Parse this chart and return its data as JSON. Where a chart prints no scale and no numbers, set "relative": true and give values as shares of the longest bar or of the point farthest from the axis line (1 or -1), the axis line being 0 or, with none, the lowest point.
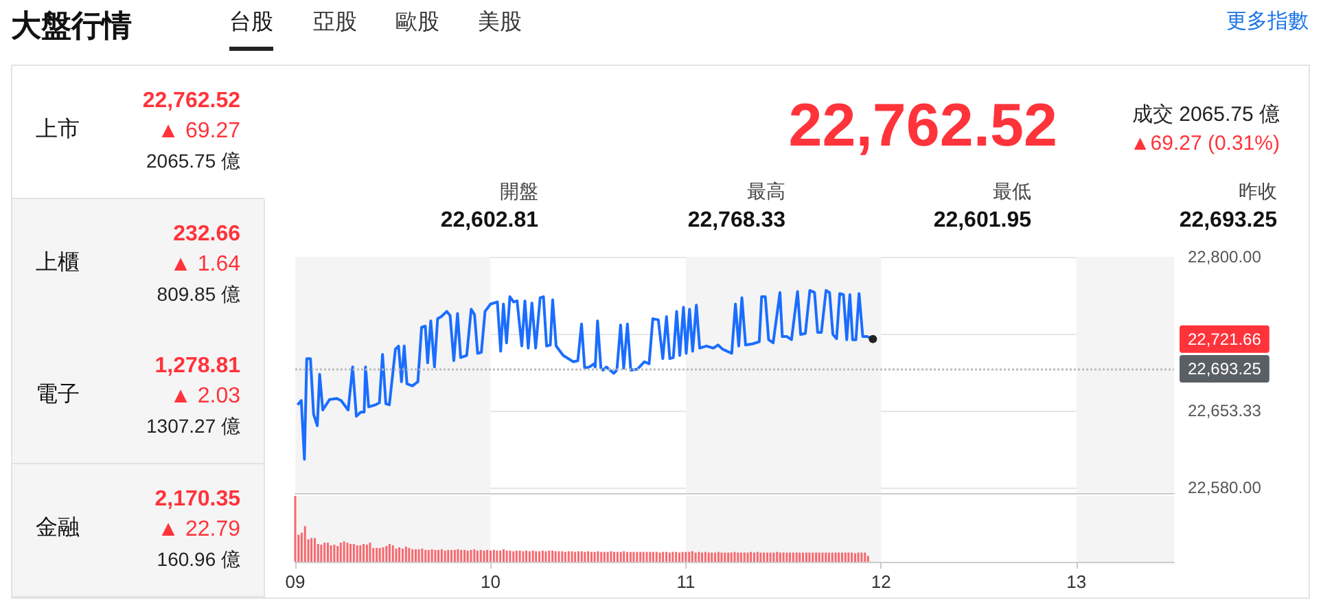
{
  "chart_data": [
    {
      "type": "line",
      "title": "大盤行情",
      "annotations": [
        "台股",
        "亞股",
        "歐股",
        "美股",
        "更多指數",
        "上市",
        "22,762.52",
        "▲ 69.27",
        "2065.75 億",
        "上櫃",
        "232.66",
        "▲ 1.64",
        "809.85 億",
        "電子",
        "1,278.81",
        "▲ 2.03",
        "1307.27 億",
        "金融",
        "2,170.35",
        "▲ 22.79",
        "160.96 億",
        "22,762.52",
        "成交 2065.75 億",
        "▲69.27 (0.31%)",
        "開盤",
        "22,602.81",
        "最高",
        "22,768.33",
        "最低",
        "22,601.95",
        "昨收",
        "22,693.25",
        "22,721.66"
      ],
      "color": "#1a6dff",
      "x": [
        9.012,
        9.031,
        9.047,
        9.059,
        9.078,
        9.094,
        9.113,
        9.125,
        9.141,
        9.176,
        9.212,
        9.235,
        9.271,
        9.294,
        9.313,
        9.336,
        9.353,
        9.36,
        9.376,
        9.412,
        9.431,
        9.447,
        9.464,
        9.482,
        9.513,
        9.529,
        9.544,
        9.558,
        9.572,
        9.6,
        9.628,
        9.647,
        9.666,
        9.678,
        9.694,
        9.713,
        9.729,
        9.748,
        9.776,
        9.793,
        9.812,
        9.831,
        9.847,
        9.878,
        9.901,
        9.918,
        9.934,
        9.953,
        9.972,
        10.0,
        10.035,
        10.052,
        10.066,
        10.082,
        10.099,
        10.118,
        10.136,
        10.16,
        10.176,
        10.193,
        10.212,
        10.231,
        10.254,
        10.271,
        10.287,
        10.306,
        10.318,
        10.336,
        10.372,
        10.424,
        10.447,
        10.466,
        10.482,
        10.506,
        10.529,
        10.536,
        10.548,
        10.565,
        10.576,
        10.593,
        10.612,
        10.631,
        10.647,
        10.666,
        10.682,
        10.701,
        10.718,
        10.753,
        10.788,
        10.812,
        10.831,
        10.859,
        10.882,
        10.901,
        10.918,
        10.936,
        10.953,
        10.969,
        10.988,
        11.002,
        11.019,
        11.035,
        11.054,
        11.071,
        11.106,
        11.141,
        11.165,
        11.188,
        11.235,
        11.254,
        11.271,
        11.287,
        11.306,
        11.341,
        11.376,
        11.388,
        11.407,
        11.424,
        11.447,
        11.482,
        11.494,
        11.518,
        11.541,
        11.572,
        11.588,
        11.612,
        11.635,
        11.659,
        11.675,
        11.694,
        11.718,
        11.736,
        11.753,
        11.772,
        11.788,
        11.807,
        11.824,
        11.84,
        11.854,
        11.871,
        11.887,
        11.906,
        11.929,
        11.958
      ],
      "values": [
        22659,
        22663,
        22607,
        22703,
        22703,
        22650,
        22639,
        22688,
        22654,
        22664,
        22665,
        22663,
        22654,
        22695,
        22648,
        22652,
        22652,
        22695,
        22657,
        22659,
        22661,
        22707,
        22660,
        22659,
        22712,
        22715,
        22681,
        22715,
        22679,
        22677,
        22681,
        22733,
        22734,
        22699,
        22739,
        22695,
        22741,
        22743,
        22748,
        22744,
        22701,
        22746,
        22704,
        22706,
        22750,
        22745,
        22708,
        22709,
        22748,
        22755,
        22757,
        22710,
        22755,
        22718,
        22762,
        22757,
        22758,
        22715,
        22758,
        22713,
        22756,
        22713,
        22761,
        22762,
        22715,
        22716,
        22759,
        22715,
        22706,
        22700,
        22701,
        22736,
        22694,
        22695,
        22698,
        22695,
        22739,
        22694,
        22692,
        22695,
        22692,
        22689,
        22692,
        22735,
        22694,
        22736,
        22692,
        22693,
        22700,
        22698,
        22741,
        22740,
        22703,
        22743,
        22703,
        22704,
        22748,
        22706,
        22752,
        22708,
        22750,
        22710,
        22754,
        22713,
        22715,
        22713,
        22716,
        22712,
        22708,
        22755,
        22715,
        22761,
        22716,
        22717,
        22719,
        22762,
        22762,
        22721,
        22718,
        22766,
        22724,
        22724,
        22721,
        22767,
        22726,
        22727,
        22768,
        22766,
        22728,
        22728,
        22768,
        22766,
        22726,
        22722,
        22765,
        22764,
        22721,
        22764,
        22721,
        22721,
        22765,
        22724,
        22724,
        22721.66
      ],
      "xlim": [
        9,
        13.5
      ],
      "ylim": [
        22575,
        22800
      ],
      "yticks": [
        {
          "value": 22580,
          "label": "22,580.00"
        },
        {
          "value": 22653.33,
          "label": "22,653.33"
        },
        {
          "value": 22726.67,
          "label": null
        },
        {
          "value": 22800,
          "label": "22,800.00"
        }
      ],
      "tick_labels": "y",
      "grid": "y",
      "marker": "none",
      "ref_lines": [
        {
          "axis": "y",
          "value": 22693.25,
          "label": "22,693.25",
          "color": "#bbbbbb",
          "line_style": "dotted"
        }
      ],
      "bands": [
        {
          "axis": "x",
          "from": 9,
          "to": 10,
          "color": "#f4f4f4"
        },
        {
          "axis": "x",
          "from": 11,
          "to": 12,
          "color": "#f4f4f4"
        },
        {
          "axis": "x",
          "from": 13,
          "to": 13.5,
          "color": "#f4f4f4"
        }
      ]
    },
    {
      "type": "bar",
      "relative": true,
      "tick_labels": "x",
      "color": "#f7686e",
      "xlim": [
        9,
        13.5
      ],
      "xticks": [
        {
          "value": 9,
          "label": "09"
        },
        {
          "value": 10,
          "label": "10"
        },
        {
          "value": 11,
          "label": "11"
        },
        {
          "value": 12,
          "label": "12"
        },
        {
          "value": 13,
          "label": "13"
        }
      ],
      "bands": [
        {
          "axis": "x",
          "from": 9,
          "to": 10,
          "color": "#f4f4f4"
        },
        {
          "axis": "x",
          "from": 11,
          "to": 12,
          "color": "#f4f4f4"
        },
        {
          "axis": "x",
          "from": 13,
          "to": 13.5,
          "color": "#f4f4f4"
        }
      ],
      "x": [
        9,
        9.017,
        9.033,
        9.05,
        9.067,
        9.083,
        9.1,
        9.117,
        9.133,
        9.15,
        9.167,
        9.183,
        9.2,
        9.217,
        9.233,
        9.25,
        9.267,
        9.283,
        9.3,
        9.317,
        9.333,
        9.35,
        9.367,
        9.383,
        9.4,
        9.417,
        9.433,
        9.45,
        9.467,
        9.483,
        9.5,
        9.517,
        9.533,
        9.55,
        9.567,
        9.583,
        9.6,
        9.617,
        9.633,
        9.65,
        9.667,
        9.683,
        9.7,
        9.717,
        9.733,
        9.75,
        9.767,
        9.783,
        9.8,
        9.817,
        9.833,
        9.85,
        9.867,
        9.883,
        9.9,
        9.917,
        9.933,
        9.95,
        9.967,
        9.983,
        10,
        10.017,
        10.033,
        10.05,
        10.067,
        10.083,
        10.1,
        10.117,
        10.133,
        10.15,
        10.167,
        10.183,
        10.2,
        10.217,
        10.233,
        10.25,
        10.267,
        10.283,
        10.3,
        10.317,
        10.333,
        10.35,
        10.367,
        10.383,
        10.4,
        10.417,
        10.433,
        10.45,
        10.467,
        10.483,
        10.5,
        10.517,
        10.533,
        10.55,
        10.567,
        10.583,
        10.6,
        10.617,
        10.633,
        10.65,
        10.667,
        10.683,
        10.7,
        10.717,
        10.733,
        10.75,
        10.767,
        10.783,
        10.8,
        10.817,
        10.833,
        10.85,
        10.867,
        10.883,
        10.9,
        10.917,
        10.933,
        10.95,
        10.967,
        10.983,
        11,
        11.017,
        11.033,
        11.05,
        11.067,
        11.083,
        11.1,
        11.117,
        11.133,
        11.15,
        11.167,
        11.183,
        11.2,
        11.217,
        11.233,
        11.25,
        11.267,
        11.283,
        11.3,
        11.317,
        11.333,
        11.35,
        11.367,
        11.383,
        11.4,
        11.417,
        11.433,
        11.45,
        11.467,
        11.483,
        11.5,
        11.517,
        11.533,
        11.55,
        11.567,
        11.583,
        11.6,
        11.617,
        11.633,
        11.65,
        11.667,
        11.683,
        11.7,
        11.717,
        11.733,
        11.75,
        11.767,
        11.783,
        11.8,
        11.817,
        11.833,
        11.85,
        11.867,
        11.883,
        11.9,
        11.917,
        11.933
      ],
      "values": [
        1,
        0.41,
        0.44,
        0.54,
        0.34,
        0.36,
        0.36,
        0.27,
        0.26,
        0.29,
        0.29,
        0.25,
        0.26,
        0.24,
        0.29,
        0.31,
        0.29,
        0.27,
        0.27,
        0.25,
        0.25,
        0.27,
        0.26,
        0.29,
        0.21,
        0.21,
        0.21,
        0.22,
        0.24,
        0.27,
        0.25,
        0.2,
        0.22,
        0.2,
        0.23,
        0.21,
        0.19,
        0.19,
        0.19,
        0.2,
        0.18,
        0.18,
        0.19,
        0.18,
        0.18,
        0.19,
        0.17,
        0.18,
        0.18,
        0.18,
        0.19,
        0.18,
        0.18,
        0.17,
        0.18,
        0.19,
        0.17,
        0.18,
        0.17,
        0.18,
        0.17,
        0.18,
        0.17,
        0.17,
        0.19,
        0.17,
        0.17,
        0.16,
        0.17,
        0.17,
        0.16,
        0.17,
        0.16,
        0.17,
        0.16,
        0.16,
        0.17,
        0.16,
        0.17,
        0.17,
        0.16,
        0.16,
        0.16,
        0.15,
        0.16,
        0.16,
        0.15,
        0.16,
        0.16,
        0.15,
        0.16,
        0.15,
        0.15,
        0.16,
        0.15,
        0.15,
        0.15,
        0.16,
        0.15,
        0.15,
        0.15,
        0.16,
        0.15,
        0.15,
        0.15,
        0.15,
        0.15,
        0.15,
        0.15,
        0.15,
        0.15,
        0.15,
        0.14,
        0.15,
        0.15,
        0.14,
        0.15,
        0.15,
        0.14,
        0.15,
        0.15,
        0.15,
        0.16,
        0.14,
        0.15,
        0.14,
        0.15,
        0.14,
        0.14,
        0.14,
        0.15,
        0.14,
        0.14,
        0.14,
        0.14,
        0.15,
        0.14,
        0.14,
        0.14,
        0.14,
        0.15,
        0.14,
        0.15,
        0.14,
        0.14,
        0.14,
        0.14,
        0.14,
        0.15,
        0.14,
        0.14,
        0.14,
        0.14,
        0.14,
        0.14,
        0.14,
        0.14,
        0.14,
        0.14,
        0.14,
        0.14,
        0.14,
        0.14,
        0.14,
        0.14,
        0.14,
        0.14,
        0.14,
        0.14,
        0.14,
        0.14,
        0.14,
        0.13,
        0.14,
        0.14,
        0.14,
        0.09
      ]
    }
  ]
}
